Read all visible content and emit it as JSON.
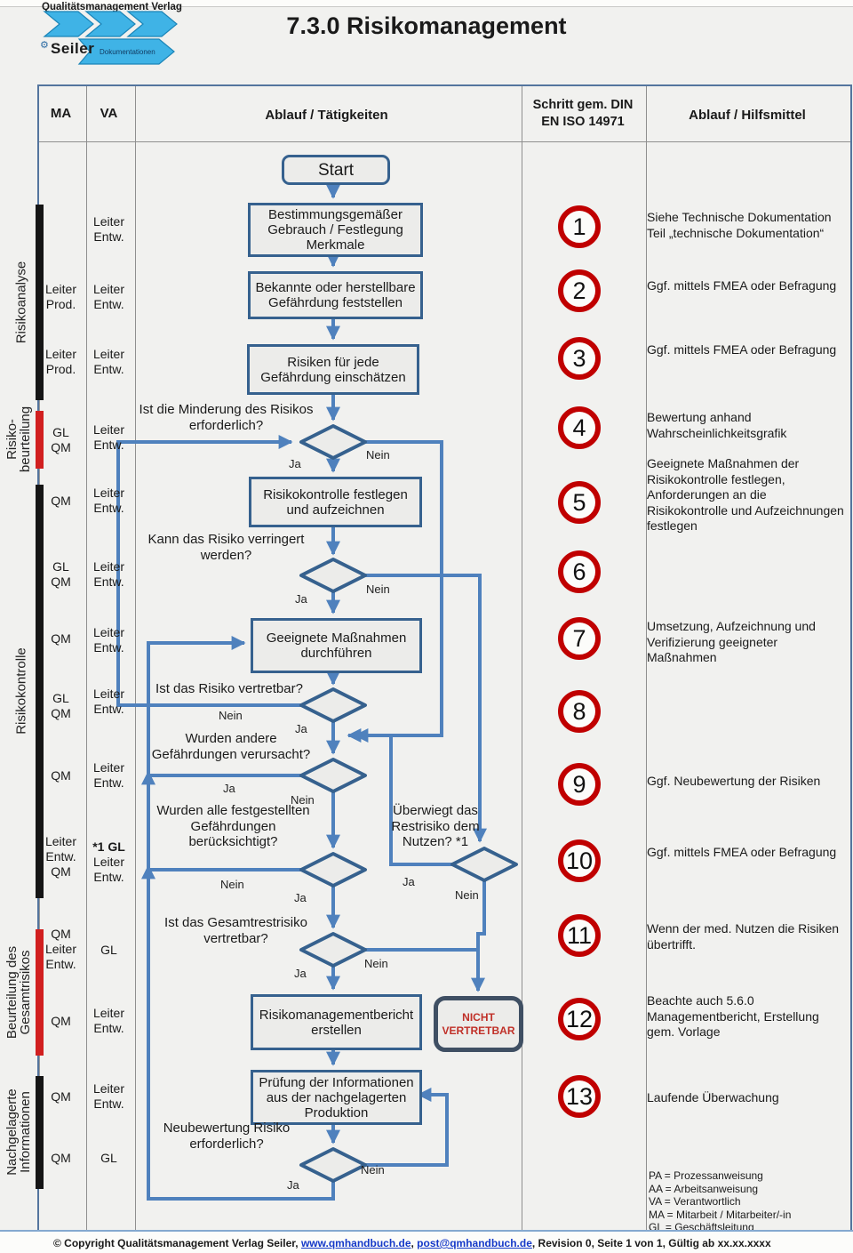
{
  "header": {
    "logo": {
      "line1": "Qualitätsmanagement Verlag",
      "brand": "Seiler",
      "banner": "Dokumentationen",
      "gear_icon": "⚙"
    },
    "title": "7.3.0 Risikomanagement"
  },
  "table": {
    "columns": {
      "ma": "MA",
      "va": "VA",
      "ablauf": "Ablauf / Tätigkeiten",
      "schritt": "Schritt gem. DIN EN ISO 14971",
      "hilfsmittel": "Ablauf / Hilfsmittel"
    }
  },
  "sections": [
    {
      "lines": [
        "Risikoanalyse"
      ],
      "bar_color": "#151515"
    },
    {
      "lines": [
        "Risiko-",
        "beurteilung"
      ],
      "bar_color": "#d11f1f"
    },
    {
      "lines": [
        "Risikokontrolle"
      ],
      "bar_color": "#151515"
    },
    {
      "lines": [
        "Beurteilung des",
        "Gesamtrisikos"
      ],
      "bar_color": "#d11f1f"
    },
    {
      "lines": [
        "Nachgelagerte",
        "Informationen"
      ],
      "bar_color": "#151515"
    }
  ],
  "assignments": [
    {
      "ma": [],
      "va": [
        "Leiter",
        "Entw."
      ]
    },
    {
      "ma": [
        "Leiter",
        "Prod."
      ],
      "va": [
        "Leiter",
        "Entw."
      ]
    },
    {
      "ma": [
        "Leiter",
        "Prod."
      ],
      "va": [
        "Leiter",
        "Entw."
      ]
    },
    {
      "ma": [
        "GL",
        "QM"
      ],
      "va": [
        "Leiter",
        "Entw."
      ]
    },
    {
      "ma": [
        "QM"
      ],
      "va": [
        "Leiter",
        "Entw."
      ]
    },
    {
      "ma": [
        "GL",
        "QM"
      ],
      "va": [
        "Leiter",
        "Entw."
      ]
    },
    {
      "ma": [
        "QM"
      ],
      "va": [
        "Leiter",
        "Entw."
      ]
    },
    {
      "ma": [
        "GL",
        "QM"
      ],
      "va": [
        "Leiter",
        "Entw."
      ]
    },
    {
      "ma": [
        "QM"
      ],
      "va": [
        "Leiter",
        "Entw."
      ]
    },
    {
      "ma": [
        "Leiter",
        "Entw.",
        "QM"
      ],
      "va": [
        "*1 GL",
        "Leiter",
        "Entw."
      ]
    },
    {
      "ma": [
        "QM",
        "Leiter",
        "Entw."
      ],
      "va": [
        "GL"
      ]
    },
    {
      "ma": [
        "QM"
      ],
      "va": [
        "Leiter",
        "Entw."
      ]
    },
    {
      "ma": [
        "QM"
      ],
      "va": [
        "Leiter",
        "Entw."
      ]
    },
    {
      "ma": [
        "QM"
      ],
      "va": [
        "GL"
      ]
    }
  ],
  "flow": {
    "nodes": {
      "start": [
        "Start"
      ],
      "box1": [
        "Bestimmungsgemäßer",
        "Gebrauch / Festlegung",
        "Merkmale"
      ],
      "box2": [
        "Bekannte oder herstellbare",
        "Gefährdung feststellen"
      ],
      "box3": [
        "Risiken für jede",
        "Gefährdung einschätzen"
      ],
      "box5": [
        "Risikokontrolle festlegen",
        "und aufzeichnen"
      ],
      "box7": [
        "Geeignete Maßnahmen",
        "durchführen"
      ],
      "box12": [
        "Risikomanagementbericht",
        "erstellen"
      ],
      "box13": [
        "Prüfung der Informationen",
        "aus der nachgelagerten",
        "Produktion"
      ],
      "nicht": [
        "NICHT",
        "VERTRETBAR"
      ]
    },
    "questions": {
      "q4": [
        "Ist die Minderung des Risikos",
        "erforderlich?"
      ],
      "q6": [
        "Kann das Risiko verringert",
        "werden?"
      ],
      "q8": [
        "Ist das Risiko vertretbar?"
      ],
      "q9": [
        "Wurden andere",
        "Gefährdungen verursacht?"
      ],
      "q10a": [
        "Wurden alle festgestellten",
        "Gefährdungen",
        "berücksichtigt?"
      ],
      "q10b": [
        "Überwiegt das",
        "Restrisiko dem",
        "Nutzen? *1"
      ],
      "q11": [
        "Ist das Gesamtrestrisiko",
        "vertretbar?"
      ],
      "q13": [
        "Neubewertung Risiko",
        "erforderlich?"
      ]
    },
    "branch_labels": {
      "ja": "Ja",
      "nein": "Nein"
    }
  },
  "steps": [
    {
      "num": "1",
      "help": "Siehe Technische Dokumentation Teil „technische Dokumentation“"
    },
    {
      "num": "2",
      "help": "Ggf. mittels FMEA oder Befragung"
    },
    {
      "num": "3",
      "help": "Ggf. mittels FMEA oder Befragung"
    },
    {
      "num": "4",
      "help": "Bewertung anhand Wahrscheinlichkeitsgrafik"
    },
    {
      "num": "5",
      "help": "Geeignete Maßnahmen der Risikokontrolle festlegen, Anforderungen an die Risikokontrolle und Aufzeichnungen festlegen"
    },
    {
      "num": "6",
      "help": ""
    },
    {
      "num": "7",
      "help": "Umsetzung, Aufzeichnung und Verifizierung geeigneter Maßnahmen"
    },
    {
      "num": "8",
      "help": ""
    },
    {
      "num": "9",
      "help": "Ggf. Neubewertung der Risiken"
    },
    {
      "num": "10",
      "help": "Ggf. mittels FMEA oder Befragung"
    },
    {
      "num": "11",
      "help": "Wenn der med. Nutzen die Risiken übertrifft."
    },
    {
      "num": "12",
      "help": "Beachte auch 5.6.0 Managementbericht, Erstellung gem. Vorlage"
    },
    {
      "num": "13",
      "help": "Laufende Überwachung"
    }
  ],
  "legend": [
    "PA = Prozessanweisung",
    "AA = Arbeitsanweisung",
    "VA = Verantwortlich",
    "MA = Mitarbeit / Mitarbeiter/-in",
    "GL = Geschäftsleitung"
  ],
  "footer": {
    "copyright": "© Copyright Qualitätsmanagement Verlag Seiler, ",
    "link_web": "www.qmhandbuch.de",
    "comma": ", ",
    "link_mail": "post@qmhandbuch.de",
    "rest": ", Revision 0, Seite 1 von 1, Gültig ab xx.xx.xxxx"
  },
  "colors": {
    "flow_blue": "#4f81bd",
    "box_border": "#36618e",
    "step_red": "#c00000",
    "section_red": "#d11f1f"
  }
}
